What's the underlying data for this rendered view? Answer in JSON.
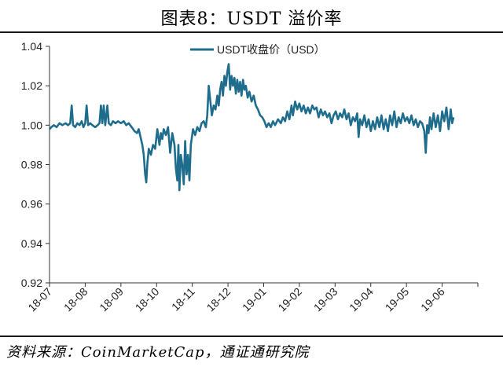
{
  "title": "图表8：USDT 溢价率",
  "source": "资料来源：CoinMarketCap，通证通研究院",
  "colors": {
    "series": "#1f6d8c",
    "axis": "#333333",
    "rule": "#1a1a1a"
  },
  "chart_data": {
    "type": "line",
    "title": "",
    "xlabel": "",
    "ylabel": "",
    "ylim": [
      0.92,
      1.04
    ],
    "yticks": [
      "0.92",
      "0.94",
      "0.96",
      "0.98",
      "1.00",
      "1.02",
      "1.04"
    ],
    "xticks": [
      "18-07",
      "18-08",
      "18-09",
      "18-10",
      "18-11",
      "18-12",
      "19-01",
      "19-02",
      "19-03",
      "19-04",
      "19-05",
      "19-06"
    ],
    "xlim": [
      0,
      12
    ],
    "grid": false,
    "legend": "top-center",
    "series": [
      {
        "name": "USDT收盘价（USD）",
        "points": [
          [
            0.0,
            0.998
          ],
          [
            0.05,
            0.999
          ],
          [
            0.12,
            1.0
          ],
          [
            0.2,
            0.999
          ],
          [
            0.28,
            1.001
          ],
          [
            0.36,
            1.0
          ],
          [
            0.45,
            1.001
          ],
          [
            0.52,
            1.0
          ],
          [
            0.58,
            1.001
          ],
          [
            0.62,
            1.01
          ],
          [
            0.66,
            1.0
          ],
          [
            0.72,
            0.999
          ],
          [
            0.78,
            1.001
          ],
          [
            0.84,
            1.0
          ],
          [
            0.9,
            1.002
          ],
          [
            0.95,
            0.999
          ],
          [
            1.0,
            1.001
          ],
          [
            1.04,
            1.01
          ],
          [
            1.08,
            1.0
          ],
          [
            1.14,
            1.001
          ],
          [
            1.2,
            1.0
          ],
          [
            1.28,
            0.999
          ],
          [
            1.35,
            1.0
          ],
          [
            1.4,
            1.001
          ],
          [
            1.44,
            1.01
          ],
          [
            1.48,
            1.001
          ],
          [
            1.52,
            1.01
          ],
          [
            1.56,
            1.0
          ],
          [
            1.62,
            1.01
          ],
          [
            1.66,
            1.001
          ],
          [
            1.72,
            1.0
          ],
          [
            1.78,
            1.002
          ],
          [
            1.85,
            1.001
          ],
          [
            1.92,
            1.002
          ],
          [
            2.0,
            1.001
          ],
          [
            2.08,
            1.002
          ],
          [
            2.15,
            1.0
          ],
          [
            2.22,
            1.001
          ],
          [
            2.3,
            0.999
          ],
          [
            2.38,
            0.997
          ],
          [
            2.45,
            0.996
          ],
          [
            2.5,
            0.998
          ],
          [
            2.55,
            0.994
          ],
          [
            2.6,
            0.99
          ],
          [
            2.64,
            0.985
          ],
          [
            2.68,
            0.975
          ],
          [
            2.71,
            0.971
          ],
          [
            2.74,
            0.98
          ],
          [
            2.78,
            0.988
          ],
          [
            2.84,
            0.985
          ],
          [
            2.9,
            0.99
          ],
          [
            2.96,
            0.988
          ],
          [
            3.02,
            0.998
          ],
          [
            3.08,
            0.99
          ],
          [
            3.12,
            0.996
          ],
          [
            3.16,
            0.993
          ],
          [
            3.2,
            0.998
          ],
          [
            3.26,
            0.995
          ],
          [
            3.32,
            0.999
          ],
          [
            3.38,
            0.986
          ],
          [
            3.44,
            0.996
          ],
          [
            3.5,
            0.99
          ],
          [
            3.54,
            0.978
          ],
          [
            3.58,
            0.972
          ],
          [
            3.61,
            0.99
          ],
          [
            3.64,
            0.967
          ],
          [
            3.68,
            0.985
          ],
          [
            3.72,
            0.98
          ],
          [
            3.76,
            0.97
          ],
          [
            3.8,
            0.992
          ],
          [
            3.84,
            0.975
          ],
          [
            3.88,
            0.985
          ],
          [
            3.92,
            0.972
          ],
          [
            3.96,
            0.99
          ],
          [
            4.02,
            0.998
          ],
          [
            4.08,
            0.995
          ],
          [
            4.14,
            0.999
          ],
          [
            4.2,
            0.997
          ],
          [
            4.26,
            1.001
          ],
          [
            4.32,
            1.002
          ],
          [
            4.38,
            0.999
          ],
          [
            4.42,
            1.005
          ],
          [
            4.46,
            1.02
          ],
          [
            4.5,
            1.013
          ],
          [
            4.55,
            1.005
          ],
          [
            4.6,
            1.01
          ],
          [
            4.65,
            1.008
          ],
          [
            4.7,
            1.015
          ],
          [
            4.74,
            1.01
          ],
          [
            4.78,
            1.018
          ],
          [
            4.82,
            1.022
          ],
          [
            4.86,
            1.015
          ],
          [
            4.9,
            1.025
          ],
          [
            4.94,
            1.02
          ],
          [
            4.98,
            1.027
          ],
          [
            5.02,
            1.031
          ],
          [
            5.06,
            1.018
          ],
          [
            5.1,
            1.025
          ],
          [
            5.14,
            1.02
          ],
          [
            5.18,
            1.024
          ],
          [
            5.22,
            1.016
          ],
          [
            5.26,
            1.023
          ],
          [
            5.3,
            1.017
          ],
          [
            5.34,
            1.022
          ],
          [
            5.38,
            1.015
          ],
          [
            5.42,
            1.023
          ],
          [
            5.46,
            1.018
          ],
          [
            5.5,
            1.02
          ],
          [
            5.55,
            1.014
          ],
          [
            5.6,
            1.017
          ],
          [
            5.66,
            1.012
          ],
          [
            5.72,
            1.015
          ],
          [
            5.78,
            1.01
          ],
          [
            5.84,
            1.008
          ],
          [
            5.9,
            1.005
          ],
          [
            5.96,
            1.004
          ],
          [
            6.02,
            1.002
          ],
          [
            6.08,
            0.999
          ],
          [
            6.14,
            1.001
          ],
          [
            6.2,
            0.999
          ],
          [
            6.26,
            1.002
          ],
          [
            6.32,
            1.0
          ],
          [
            6.4,
            1.003
          ],
          [
            6.48,
            1.001
          ],
          [
            6.54,
            1.004
          ],
          [
            6.6,
            1.002
          ],
          [
            6.66,
            1.007
          ],
          [
            6.72,
            1.003
          ],
          [
            6.78,
            1.01
          ],
          [
            6.82,
            1.005
          ],
          [
            6.88,
            1.012
          ],
          [
            6.94,
            1.008
          ],
          [
            7.0,
            1.011
          ],
          [
            7.06,
            1.007
          ],
          [
            7.12,
            1.01
          ],
          [
            7.18,
            1.006
          ],
          [
            7.24,
            1.009
          ],
          [
            7.3,
            1.006
          ],
          [
            7.36,
            1.01
          ],
          [
            7.42,
            1.008
          ],
          [
            7.48,
            1.009
          ],
          [
            7.54,
            1.004
          ],
          [
            7.6,
            1.008
          ],
          [
            7.66,
            1.005
          ],
          [
            7.72,
            1.007
          ],
          [
            7.78,
            1.004
          ],
          [
            7.84,
            1.006
          ],
          [
            7.9,
            1.001
          ],
          [
            7.96,
            1.005
          ],
          [
            8.02,
            1.007
          ],
          [
            8.08,
            1.003
          ],
          [
            8.14,
            1.006
          ],
          [
            8.2,
            1.004
          ],
          [
            8.26,
            1.008
          ],
          [
            8.32,
            1.003
          ],
          [
            8.38,
            1.006
          ],
          [
            8.44,
            1.0
          ],
          [
            8.5,
            1.004
          ],
          [
            8.56,
            1.002
          ],
          [
            8.62,
            1.006
          ],
          [
            8.66,
            0.994
          ],
          [
            8.7,
            1.003
          ],
          [
            8.76,
            1.0
          ],
          [
            8.82,
            1.005
          ],
          [
            8.88,
            0.999
          ],
          [
            8.94,
            1.003
          ],
          [
            9.0,
            0.997
          ],
          [
            9.06,
            1.002
          ],
          [
            9.12,
            0.998
          ],
          [
            9.18,
            1.004
          ],
          [
            9.24,
            0.999
          ],
          [
            9.3,
            1.005
          ],
          [
            9.36,
            0.998
          ],
          [
            9.42,
            1.003
          ],
          [
            9.48,
            0.997
          ],
          [
            9.54,
            1.005
          ],
          [
            9.6,
            1.0
          ],
          [
            9.66,
            1.007
          ],
          [
            9.72,
            0.999
          ],
          [
            9.78,
            1.004
          ],
          [
            9.84,
            1.001
          ],
          [
            9.9,
            1.006
          ],
          [
            9.96,
            1.002
          ],
          [
            10.02,
            1.004
          ],
          [
            10.08,
            1.001
          ],
          [
            10.14,
            1.005
          ],
          [
            10.2,
            1.0
          ],
          [
            10.26,
            1.003
          ],
          [
            10.32,
            0.999
          ],
          [
            10.38,
            1.002
          ],
          [
            10.44,
            1.001
          ],
          [
            10.5,
            0.997
          ],
          [
            10.54,
            0.986
          ],
          [
            10.58,
            1.0
          ],
          [
            10.62,
            0.996
          ],
          [
            10.66,
            1.004
          ],
          [
            10.7,
            0.998
          ],
          [
            10.76,
            1.006
          ],
          [
            10.82,
            0.999
          ],
          [
            10.88,
            1.005
          ],
          [
            10.94,
            0.997
          ],
          [
            11.0,
            1.007
          ],
          [
            11.06,
            1.002
          ],
          [
            11.12,
            1.009
          ],
          [
            11.18,
            0.998
          ],
          [
            11.24,
            1.008
          ],
          [
            11.28,
            1.001
          ],
          [
            11.32,
            1.004
          ]
        ]
      }
    ]
  }
}
